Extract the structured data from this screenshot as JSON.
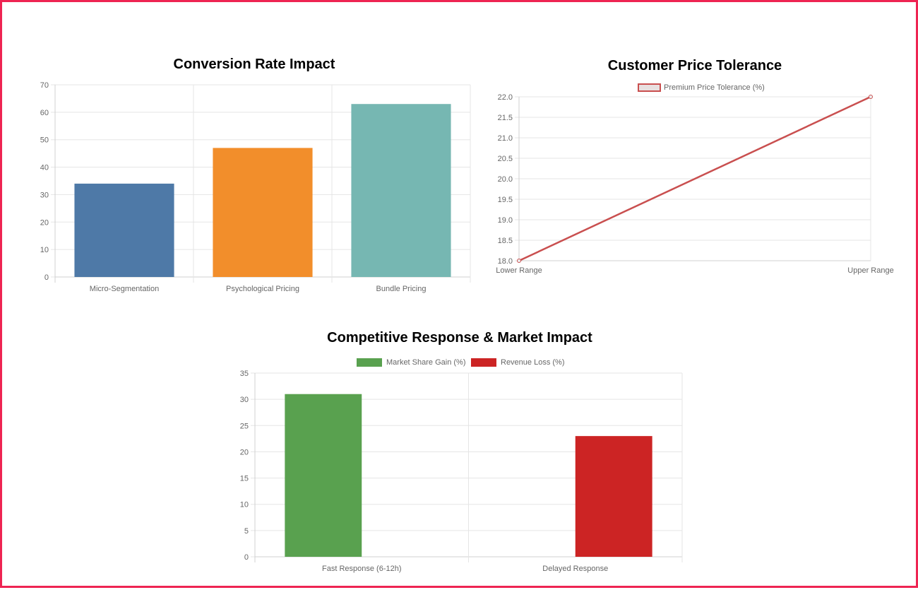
{
  "chart_data": [
    {
      "type": "bar",
      "title": "Conversion Rate Impact",
      "categories": [
        "Micro-Segmentation",
        "Psychological Pricing",
        "Bundle Pricing"
      ],
      "values": [
        34,
        47,
        63
      ],
      "colors": [
        "#4e79a7",
        "#f28e2b",
        "#76b7b2"
      ],
      "ylim": [
        0,
        70
      ],
      "yticks": [
        0,
        10,
        20,
        30,
        40,
        50,
        60,
        70
      ],
      "grid": true,
      "legend": "none"
    },
    {
      "type": "line",
      "title": "Customer Price Tolerance",
      "categories": [
        "Lower Range",
        "Upper Range"
      ],
      "series": [
        {
          "name": "Premium Price Tolerance (%)",
          "values": [
            18,
            22
          ],
          "color": "#c94f4f"
        }
      ],
      "ylim": [
        18,
        22
      ],
      "yticks": [
        "18.0",
        "18.5",
        "19.0",
        "19.5",
        "20.0",
        "20.5",
        "21.0",
        "21.5",
        "22.0"
      ],
      "grid": true,
      "legend": "top"
    },
    {
      "type": "bar",
      "title": "Competitive Response & Market Impact",
      "categories": [
        "Fast Response (6-12h)",
        "Delayed Response"
      ],
      "series": [
        {
          "name": "Market Share Gain (%)",
          "values": [
            31,
            null
          ],
          "color": "#59a14f"
        },
        {
          "name": "Revenue Loss (%)",
          "values": [
            null,
            23
          ],
          "color": "#cc2424"
        }
      ],
      "ylim": [
        0,
        35
      ],
      "yticks": [
        0,
        5,
        10,
        15,
        20,
        25,
        30,
        35
      ],
      "grid": true,
      "legend": "top"
    }
  ]
}
